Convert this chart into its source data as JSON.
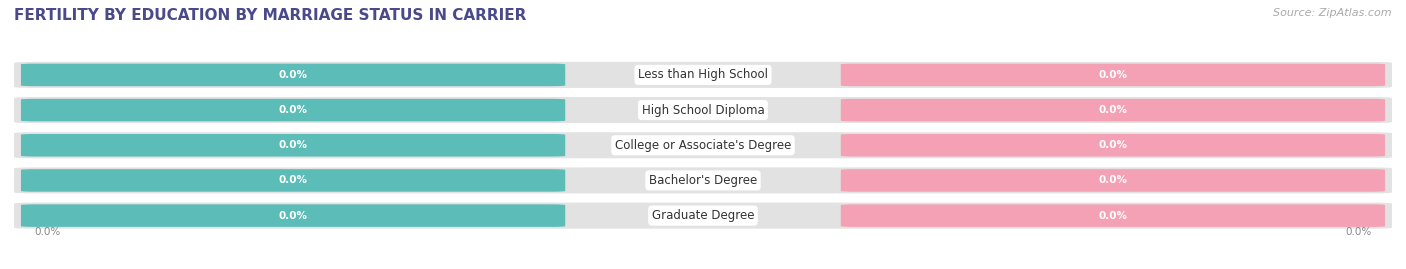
{
  "title": "FERTILITY BY EDUCATION BY MARRIAGE STATUS IN CARRIER",
  "source": "Source: ZipAtlas.com",
  "categories": [
    "Less than High School",
    "High School Diploma",
    "College or Associate's Degree",
    "Bachelor's Degree",
    "Graduate Degree"
  ],
  "married_values": [
    0.0,
    0.0,
    0.0,
    0.0,
    0.0
  ],
  "unmarried_values": [
    0.0,
    0.0,
    0.0,
    0.0,
    0.0
  ],
  "married_color": "#5bbcb8",
  "unmarried_color": "#f4a0b5",
  "row_bg_color": "#e2e2e2",
  "background_color": "#ffffff",
  "title_fontsize": 11,
  "source_fontsize": 8,
  "label_fontsize": 8.5,
  "tick_fontsize": 7.5,
  "legend_fontsize": 8.5,
  "bar_text_color": "#ffffff",
  "center_label_color": "#333333",
  "title_color": "#4a4a8a",
  "axis_label_color": "#888888",
  "source_color": "#aaaaaa"
}
